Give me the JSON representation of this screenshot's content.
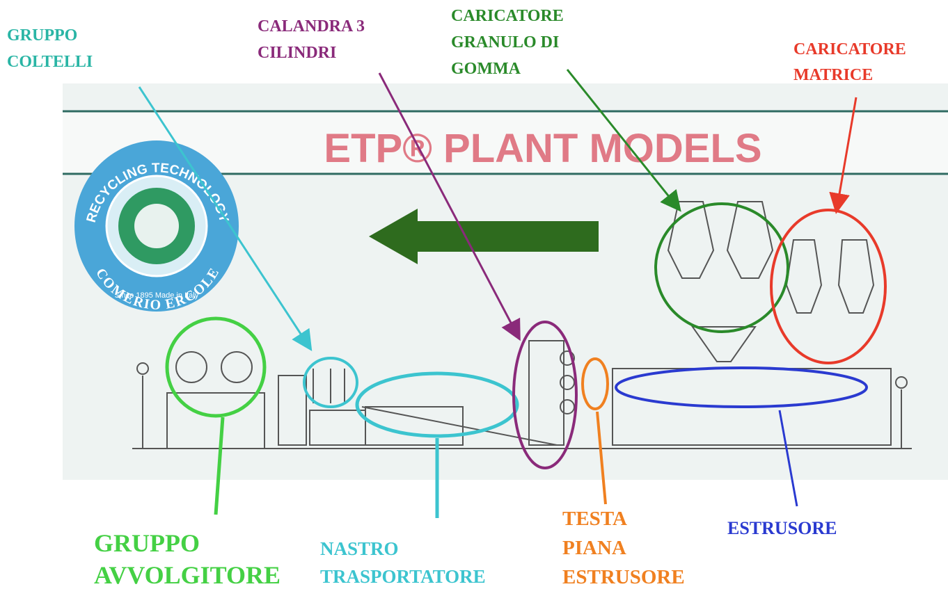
{
  "header": {
    "title": "ETP® PLANT MODELS"
  },
  "logo": {
    "top": "RECYCLING TECHNOLOGY",
    "bottom": "COMERIO ERCOLE",
    "since": "Since 1895 Made in Italy"
  },
  "labels": [
    {
      "lines": [
        "GRUPPO",
        "COLTELLI"
      ]
    },
    {
      "lines": [
        "CALANDRA  3",
        "CILINDRI"
      ]
    },
    {
      "lines": [
        "CARICATORE",
        "GRANULO DI",
        "GOMMA"
      ]
    },
    {
      "lines": [
        "CARICATORE",
        "MATRICE"
      ]
    },
    {
      "lines": [
        "GRUPPO",
        "AVVOLGITORE"
      ]
    },
    {
      "lines": [
        "NASTRO",
        "TRASPORTATORE"
      ]
    },
    {
      "lines": [
        "TESTA",
        "PIANA",
        "ESTRUSORE"
      ]
    },
    {
      "lines": [
        "ESTRUSORE"
      ]
    }
  ]
}
